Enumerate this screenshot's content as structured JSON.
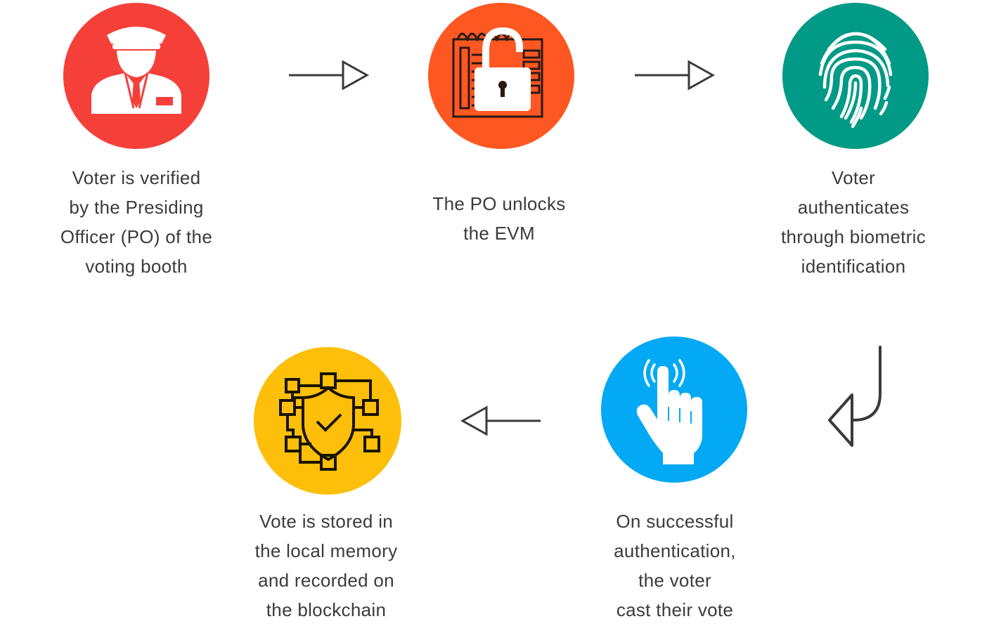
{
  "colors": {
    "step1": "#f5403a",
    "step2": "#ff5722",
    "step3": "#009a86",
    "step4": "#03a9f4",
    "step5": "#fdbf09",
    "arrow": "#3a3a3a"
  },
  "steps": [
    {
      "icon": "officer-icon",
      "lines": [
        "Voter is verified",
        "by the Presiding",
        "Officer (PO) of the",
        "voting booth"
      ]
    },
    {
      "icon": "unlock-evm-icon",
      "lines": [
        "The PO unlocks",
        "the EVM"
      ]
    },
    {
      "icon": "fingerprint-icon",
      "lines": [
        "Voter",
        "authenticates",
        "through biometric",
        "identification"
      ]
    },
    {
      "icon": "tap-finger-icon",
      "lines": [
        "On successful",
        "authentication,",
        "the voter",
        "cast their vote"
      ]
    },
    {
      "icon": "blockchain-shield-icon",
      "lines": [
        "Vote is stored in",
        "the local memory",
        "and recorded on",
        "the blockchain"
      ]
    }
  ]
}
